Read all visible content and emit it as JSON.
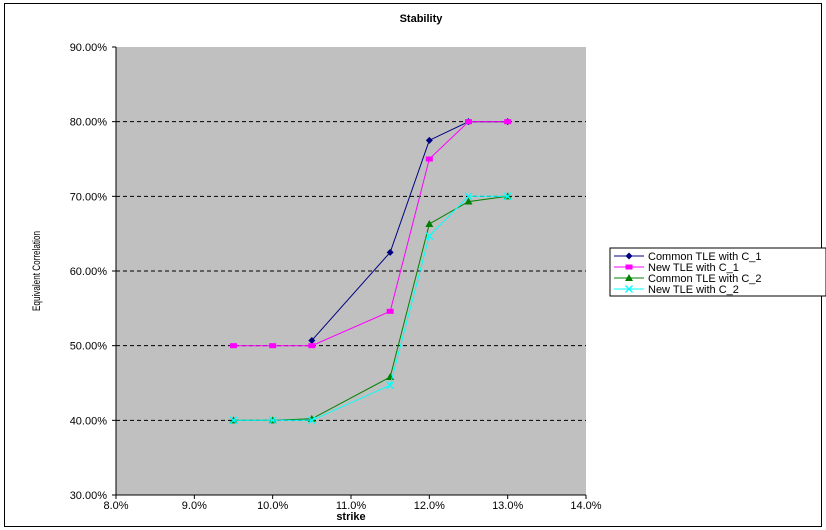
{
  "chart_data": {
    "type": "line",
    "title": "Stability",
    "xlabel": "strike",
    "ylabel": "Equivalent Correlation",
    "xlim": [
      8.0,
      14.0
    ],
    "ylim": [
      30.0,
      90.0
    ],
    "x_ticks": [
      "8.0%",
      "9.0%",
      "10.0%",
      "11.0%",
      "12.0%",
      "13.0%",
      "14.0%"
    ],
    "y_ticks": [
      "30.00%",
      "40.00%",
      "50.00%",
      "60.00%",
      "70.00%",
      "80.00%",
      "90.00%"
    ],
    "grid": "horizontal dashed",
    "legend_position": "right",
    "plot_background": "#c0c0c0",
    "series": [
      {
        "name": "Common TLE with C_1",
        "color": "#000080",
        "marker": "diamond",
        "x": [
          10.5,
          11.5,
          12.0,
          12.5,
          13.0
        ],
        "y": [
          50.7,
          62.5,
          77.5,
          80.0,
          80.0
        ]
      },
      {
        "name": "New TLE with C_1",
        "color": "#ff00ff",
        "marker": "square",
        "x": [
          9.5,
          10.0,
          10.5,
          11.5,
          12.0,
          12.5,
          13.0
        ],
        "y": [
          50.0,
          50.0,
          50.0,
          54.6,
          75.0,
          80.0,
          80.0
        ]
      },
      {
        "name": "Common TLE with C_2",
        "color": "#008000",
        "marker": "triangle",
        "x": [
          9.5,
          10.0,
          10.5,
          11.5,
          12.0,
          12.5,
          13.0
        ],
        "y": [
          40.0,
          40.0,
          40.2,
          45.8,
          66.3,
          69.3,
          70.0
        ]
      },
      {
        "name": "New TLE with C_2",
        "color": "#00ffff",
        "marker": "x",
        "x": [
          9.5,
          10.0,
          10.5,
          11.5,
          12.0,
          12.5,
          13.0
        ],
        "y": [
          40.0,
          40.0,
          40.0,
          44.7,
          64.7,
          70.0,
          70.0
        ]
      }
    ]
  }
}
